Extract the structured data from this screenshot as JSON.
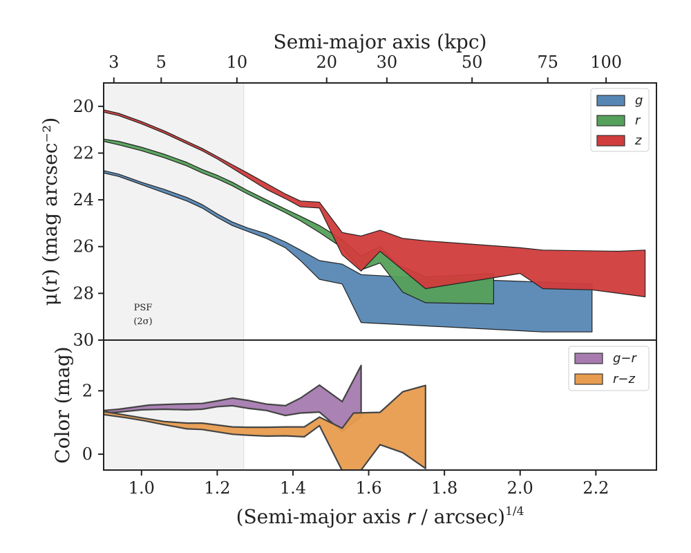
{
  "chart_data": [
    {
      "type": "area",
      "panel": "profile",
      "top_xlabel": "Semi-major axis (kpc)",
      "top_ticks": [
        {
          "label": "3",
          "x": 0.927
        },
        {
          "label": "5",
          "x": 1.052
        },
        {
          "label": "10",
          "x": 1.252
        },
        {
          "label": "20",
          "x": 1.489
        },
        {
          "label": "30",
          "x": 1.648
        },
        {
          "label": "50",
          "x": 1.873
        },
        {
          "label": "75",
          "x": 2.073
        },
        {
          "label": "100",
          "x": 2.227
        }
      ],
      "ylabel": "μ(r) (mag arcsec⁻²)",
      "ylim": [
        30,
        19
      ],
      "xlim": [
        0.9,
        2.36
      ],
      "yticks": [
        20,
        22,
        24,
        26,
        28,
        30
      ],
      "psf_label": [
        "PSF",
        "(2σ)"
      ],
      "psf_extent": 1.27,
      "legend_position": "top-right",
      "series": [
        {
          "name": "g",
          "color": "#5687b4",
          "upper": [
            [
              0.9,
              22.75
            ],
            [
              0.94,
              22.9
            ],
            [
              1.0,
              23.25
            ],
            [
              1.06,
              23.55
            ],
            [
              1.12,
              23.9
            ],
            [
              1.16,
              24.2
            ],
            [
              1.2,
              24.6
            ],
            [
              1.24,
              24.95
            ],
            [
              1.28,
              25.2
            ],
            [
              1.33,
              25.45
            ],
            [
              1.38,
              25.8
            ],
            [
              1.42,
              26.15
            ],
            [
              1.47,
              26.6
            ],
            [
              1.53,
              26.75
            ],
            [
              1.58,
              27.2
            ],
            [
              1.69,
              27.3
            ],
            [
              2.19,
              27.6
            ]
          ],
          "lower": [
            [
              0.9,
              22.85
            ],
            [
              0.94,
              23.0
            ],
            [
              1.0,
              23.35
            ],
            [
              1.06,
              23.7
            ],
            [
              1.12,
              24.05
            ],
            [
              1.16,
              24.35
            ],
            [
              1.2,
              24.75
            ],
            [
              1.24,
              25.1
            ],
            [
              1.28,
              25.35
            ],
            [
              1.33,
              25.65
            ],
            [
              1.38,
              26.05
            ],
            [
              1.42,
              26.6
            ],
            [
              1.47,
              27.4
            ],
            [
              1.53,
              27.6
            ],
            [
              1.58,
              29.25
            ],
            [
              2.06,
              29.65
            ],
            [
              2.19,
              29.65
            ]
          ]
        },
        {
          "name": "r",
          "color": "#55a05a",
          "upper": [
            [
              0.9,
              21.4
            ],
            [
              0.94,
              21.5
            ],
            [
              1.0,
              21.75
            ],
            [
              1.06,
              22.05
            ],
            [
              1.12,
              22.4
            ],
            [
              1.16,
              22.7
            ],
            [
              1.2,
              22.95
            ],
            [
              1.24,
              23.25
            ],
            [
              1.28,
              23.6
            ],
            [
              1.33,
              24.0
            ],
            [
              1.38,
              24.4
            ],
            [
              1.42,
              24.7
            ],
            [
              1.47,
              25.1
            ],
            [
              1.53,
              25.7
            ],
            [
              1.58,
              26.4
            ],
            [
              1.63,
              26.0
            ],
            [
              1.68,
              26.8
            ],
            [
              1.75,
              27.3
            ],
            [
              1.93,
              27.15
            ]
          ],
          "lower": [
            [
              0.9,
              21.5
            ],
            [
              0.94,
              21.65
            ],
            [
              1.0,
              21.9
            ],
            [
              1.06,
              22.2
            ],
            [
              1.12,
              22.55
            ],
            [
              1.16,
              22.85
            ],
            [
              1.2,
              23.1
            ],
            [
              1.24,
              23.4
            ],
            [
              1.28,
              23.75
            ],
            [
              1.33,
              24.15
            ],
            [
              1.38,
              24.55
            ],
            [
              1.42,
              24.9
            ],
            [
              1.47,
              25.4
            ],
            [
              1.53,
              26.05
            ],
            [
              1.58,
              27.0
            ],
            [
              1.63,
              26.7
            ],
            [
              1.69,
              27.95
            ],
            [
              1.75,
              28.4
            ],
            [
              1.93,
              28.45
            ]
          ]
        },
        {
          "name": "z",
          "color": "#d13c3c",
          "upper": [
            [
              0.9,
              20.15
            ],
            [
              0.94,
              20.3
            ],
            [
              1.0,
              20.65
            ],
            [
              1.06,
              21.05
            ],
            [
              1.12,
              21.5
            ],
            [
              1.16,
              21.8
            ],
            [
              1.2,
              22.15
            ],
            [
              1.24,
              22.5
            ],
            [
              1.28,
              22.85
            ],
            [
              1.33,
              23.3
            ],
            [
              1.38,
              23.75
            ],
            [
              1.42,
              24.05
            ],
            [
              1.47,
              24.1
            ],
            [
              1.53,
              25.4
            ],
            [
              1.58,
              25.55
            ],
            [
              1.63,
              25.3
            ],
            [
              1.69,
              25.65
            ],
            [
              1.75,
              25.75
            ],
            [
              2.0,
              26.05
            ],
            [
              2.06,
              26.15
            ],
            [
              2.26,
              26.2
            ],
            [
              2.33,
              26.15
            ]
          ],
          "lower": [
            [
              0.9,
              20.25
            ],
            [
              0.94,
              20.4
            ],
            [
              1.0,
              20.75
            ],
            [
              1.06,
              21.15
            ],
            [
              1.12,
              21.6
            ],
            [
              1.16,
              21.9
            ],
            [
              1.2,
              22.25
            ],
            [
              1.24,
              22.65
            ],
            [
              1.28,
              23.05
            ],
            [
              1.33,
              23.55
            ],
            [
              1.38,
              23.95
            ],
            [
              1.42,
              24.3
            ],
            [
              1.47,
              24.35
            ],
            [
              1.53,
              26.35
            ],
            [
              1.58,
              27.05
            ],
            [
              1.63,
              26.2
            ],
            [
              1.75,
              27.8
            ],
            [
              2.0,
              27.15
            ],
            [
              2.06,
              27.8
            ],
            [
              2.19,
              27.85
            ],
            [
              2.33,
              28.15
            ]
          ]
        }
      ]
    },
    {
      "type": "area",
      "panel": "color",
      "xlabel": "(Semi-major axis r / arcsec)¹ᐟ⁴",
      "xlabel_main": "(Semi-major axis",
      "xlabel_r": "r",
      "xlabel_unit": "/ arcsec)",
      "xlabel_exp": "1/4",
      "ylabel": "Color (mag)",
      "xlim": [
        0.9,
        2.36
      ],
      "ylim": [
        -0.5,
        3.6
      ],
      "yticks": [
        0,
        2
      ],
      "xticks": [
        "1.0",
        "1.2",
        "1.4",
        "1.6",
        "1.8",
        "2.0",
        "2.2"
      ],
      "xtick_values": [
        1.0,
        1.2,
        1.4,
        1.6,
        1.8,
        2.0,
        2.2
      ],
      "legend_position": "top-right",
      "series": [
        {
          "name": "g−r",
          "color": "#a77bb0",
          "upper": [
            [
              0.9,
              1.38
            ],
            [
              0.94,
              1.42
            ],
            [
              1.02,
              1.55
            ],
            [
              1.09,
              1.58
            ],
            [
              1.16,
              1.6
            ],
            [
              1.2,
              1.68
            ],
            [
              1.24,
              1.77
            ],
            [
              1.28,
              1.7
            ],
            [
              1.33,
              1.58
            ],
            [
              1.38,
              1.53
            ],
            [
              1.42,
              1.77
            ],
            [
              1.47,
              2.18
            ],
            [
              1.53,
              1.66
            ],
            [
              1.58,
              2.8
            ]
          ],
          "lower": [
            [
              0.9,
              1.3
            ],
            [
              0.94,
              1.33
            ],
            [
              1.0,
              1.4
            ],
            [
              1.06,
              1.42
            ],
            [
              1.12,
              1.4
            ],
            [
              1.16,
              1.42
            ],
            [
              1.2,
              1.5
            ],
            [
              1.24,
              1.53
            ],
            [
              1.28,
              1.45
            ],
            [
              1.33,
              1.38
            ],
            [
              1.38,
              1.22
            ],
            [
              1.42,
              1.3
            ],
            [
              1.47,
              1.33
            ],
            [
              1.53,
              0.72
            ],
            [
              1.58,
              1.2
            ]
          ]
        },
        {
          "name": "r−z",
          "color": "#e89c4f",
          "upper": [
            [
              0.9,
              1.35
            ],
            [
              0.95,
              1.25
            ],
            [
              1.01,
              1.13
            ],
            [
              1.06,
              1.03
            ],
            [
              1.12,
              0.98
            ],
            [
              1.16,
              0.98
            ],
            [
              1.24,
              0.86
            ],
            [
              1.28,
              0.85
            ],
            [
              1.33,
              0.85
            ],
            [
              1.38,
              0.86
            ],
            [
              1.43,
              0.86
            ],
            [
              1.47,
              1.17
            ],
            [
              1.53,
              0.82
            ],
            [
              1.56,
              1.3
            ],
            [
              1.63,
              1.32
            ],
            [
              1.69,
              1.97
            ],
            [
              1.75,
              2.17
            ]
          ],
          "lower": [
            [
              0.9,
              1.25
            ],
            [
              0.96,
              1.15
            ],
            [
              1.01,
              1.05
            ],
            [
              1.06,
              0.93
            ],
            [
              1.12,
              0.8
            ],
            [
              1.16,
              0.78
            ],
            [
              1.24,
              0.63
            ],
            [
              1.28,
              0.6
            ],
            [
              1.33,
              0.57
            ],
            [
              1.38,
              0.58
            ],
            [
              1.43,
              0.55
            ],
            [
              1.47,
              0.9
            ],
            [
              1.53,
              -0.52
            ],
            [
              1.58,
              -0.5
            ],
            [
              1.63,
              0.3
            ],
            [
              1.69,
              0.05
            ],
            [
              1.75,
              -0.45
            ]
          ]
        }
      ]
    }
  ]
}
